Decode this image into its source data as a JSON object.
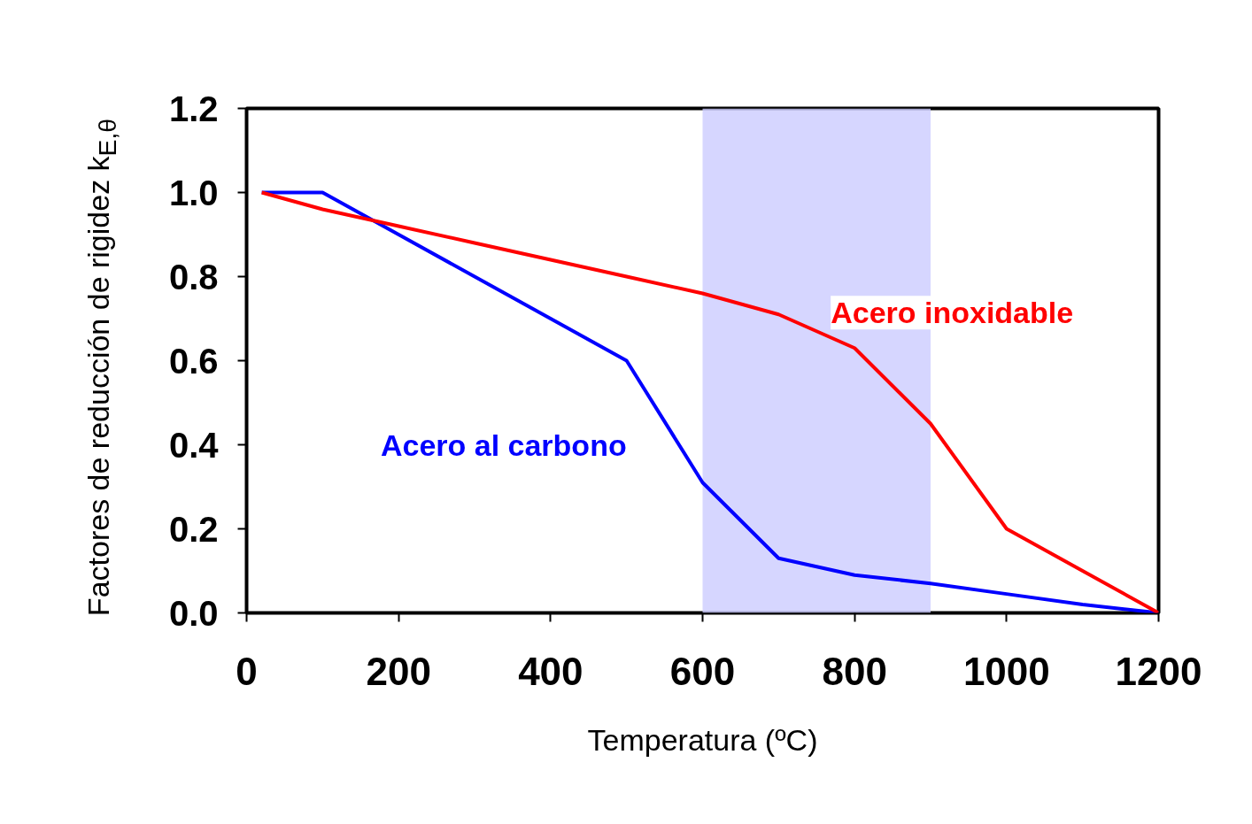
{
  "chart_data": {
    "type": "line",
    "xlabel": "Temperatura (ºC)",
    "ylabel": "Factores de reducción de rigidez k$_{E,θ}$",
    "x": [
      20,
      100,
      200,
      300,
      400,
      500,
      600,
      700,
      800,
      900,
      1000,
      1100,
      1200
    ],
    "series": [
      {
        "name": "Acero al carbono",
        "color": "#0000ff",
        "values": [
          1.0,
          1.0,
          0.9,
          0.8,
          0.7,
          0.6,
          0.31,
          0.13,
          0.09,
          0.07,
          0.045,
          0.02,
          0.0
        ]
      },
      {
        "name": "Acero inoxidable",
        "color": "#ff0000",
        "values": [
          1.0,
          0.96,
          0.92,
          0.88,
          0.84,
          0.8,
          0.76,
          0.71,
          0.63,
          0.45,
          0.2,
          0.1,
          0.0
        ]
      }
    ],
    "xlim": [
      0,
      1200
    ],
    "xticks": [
      0,
      200,
      400,
      600,
      800,
      1000,
      1200
    ],
    "ylim": [
      0,
      1.2
    ],
    "yticks": [
      {
        "value": 0,
        "label": "0.0"
      },
      {
        "value": 0.2,
        "label": "0.2"
      },
      {
        "value": 0.4,
        "label": "0.4"
      },
      {
        "value": 0.6,
        "label": "0.6"
      },
      {
        "value": 0.8,
        "label": "0.8"
      },
      {
        "value": 1.0,
        "label": "1.0"
      },
      {
        "value": 1.2,
        "label": "1.2"
      }
    ],
    "bands": [
      {
        "axis": "x",
        "from": 600,
        "to": 900,
        "color": "#ccccff"
      }
    ],
    "grid": false,
    "legend": false,
    "marker": "none",
    "line_style": "solid"
  }
}
